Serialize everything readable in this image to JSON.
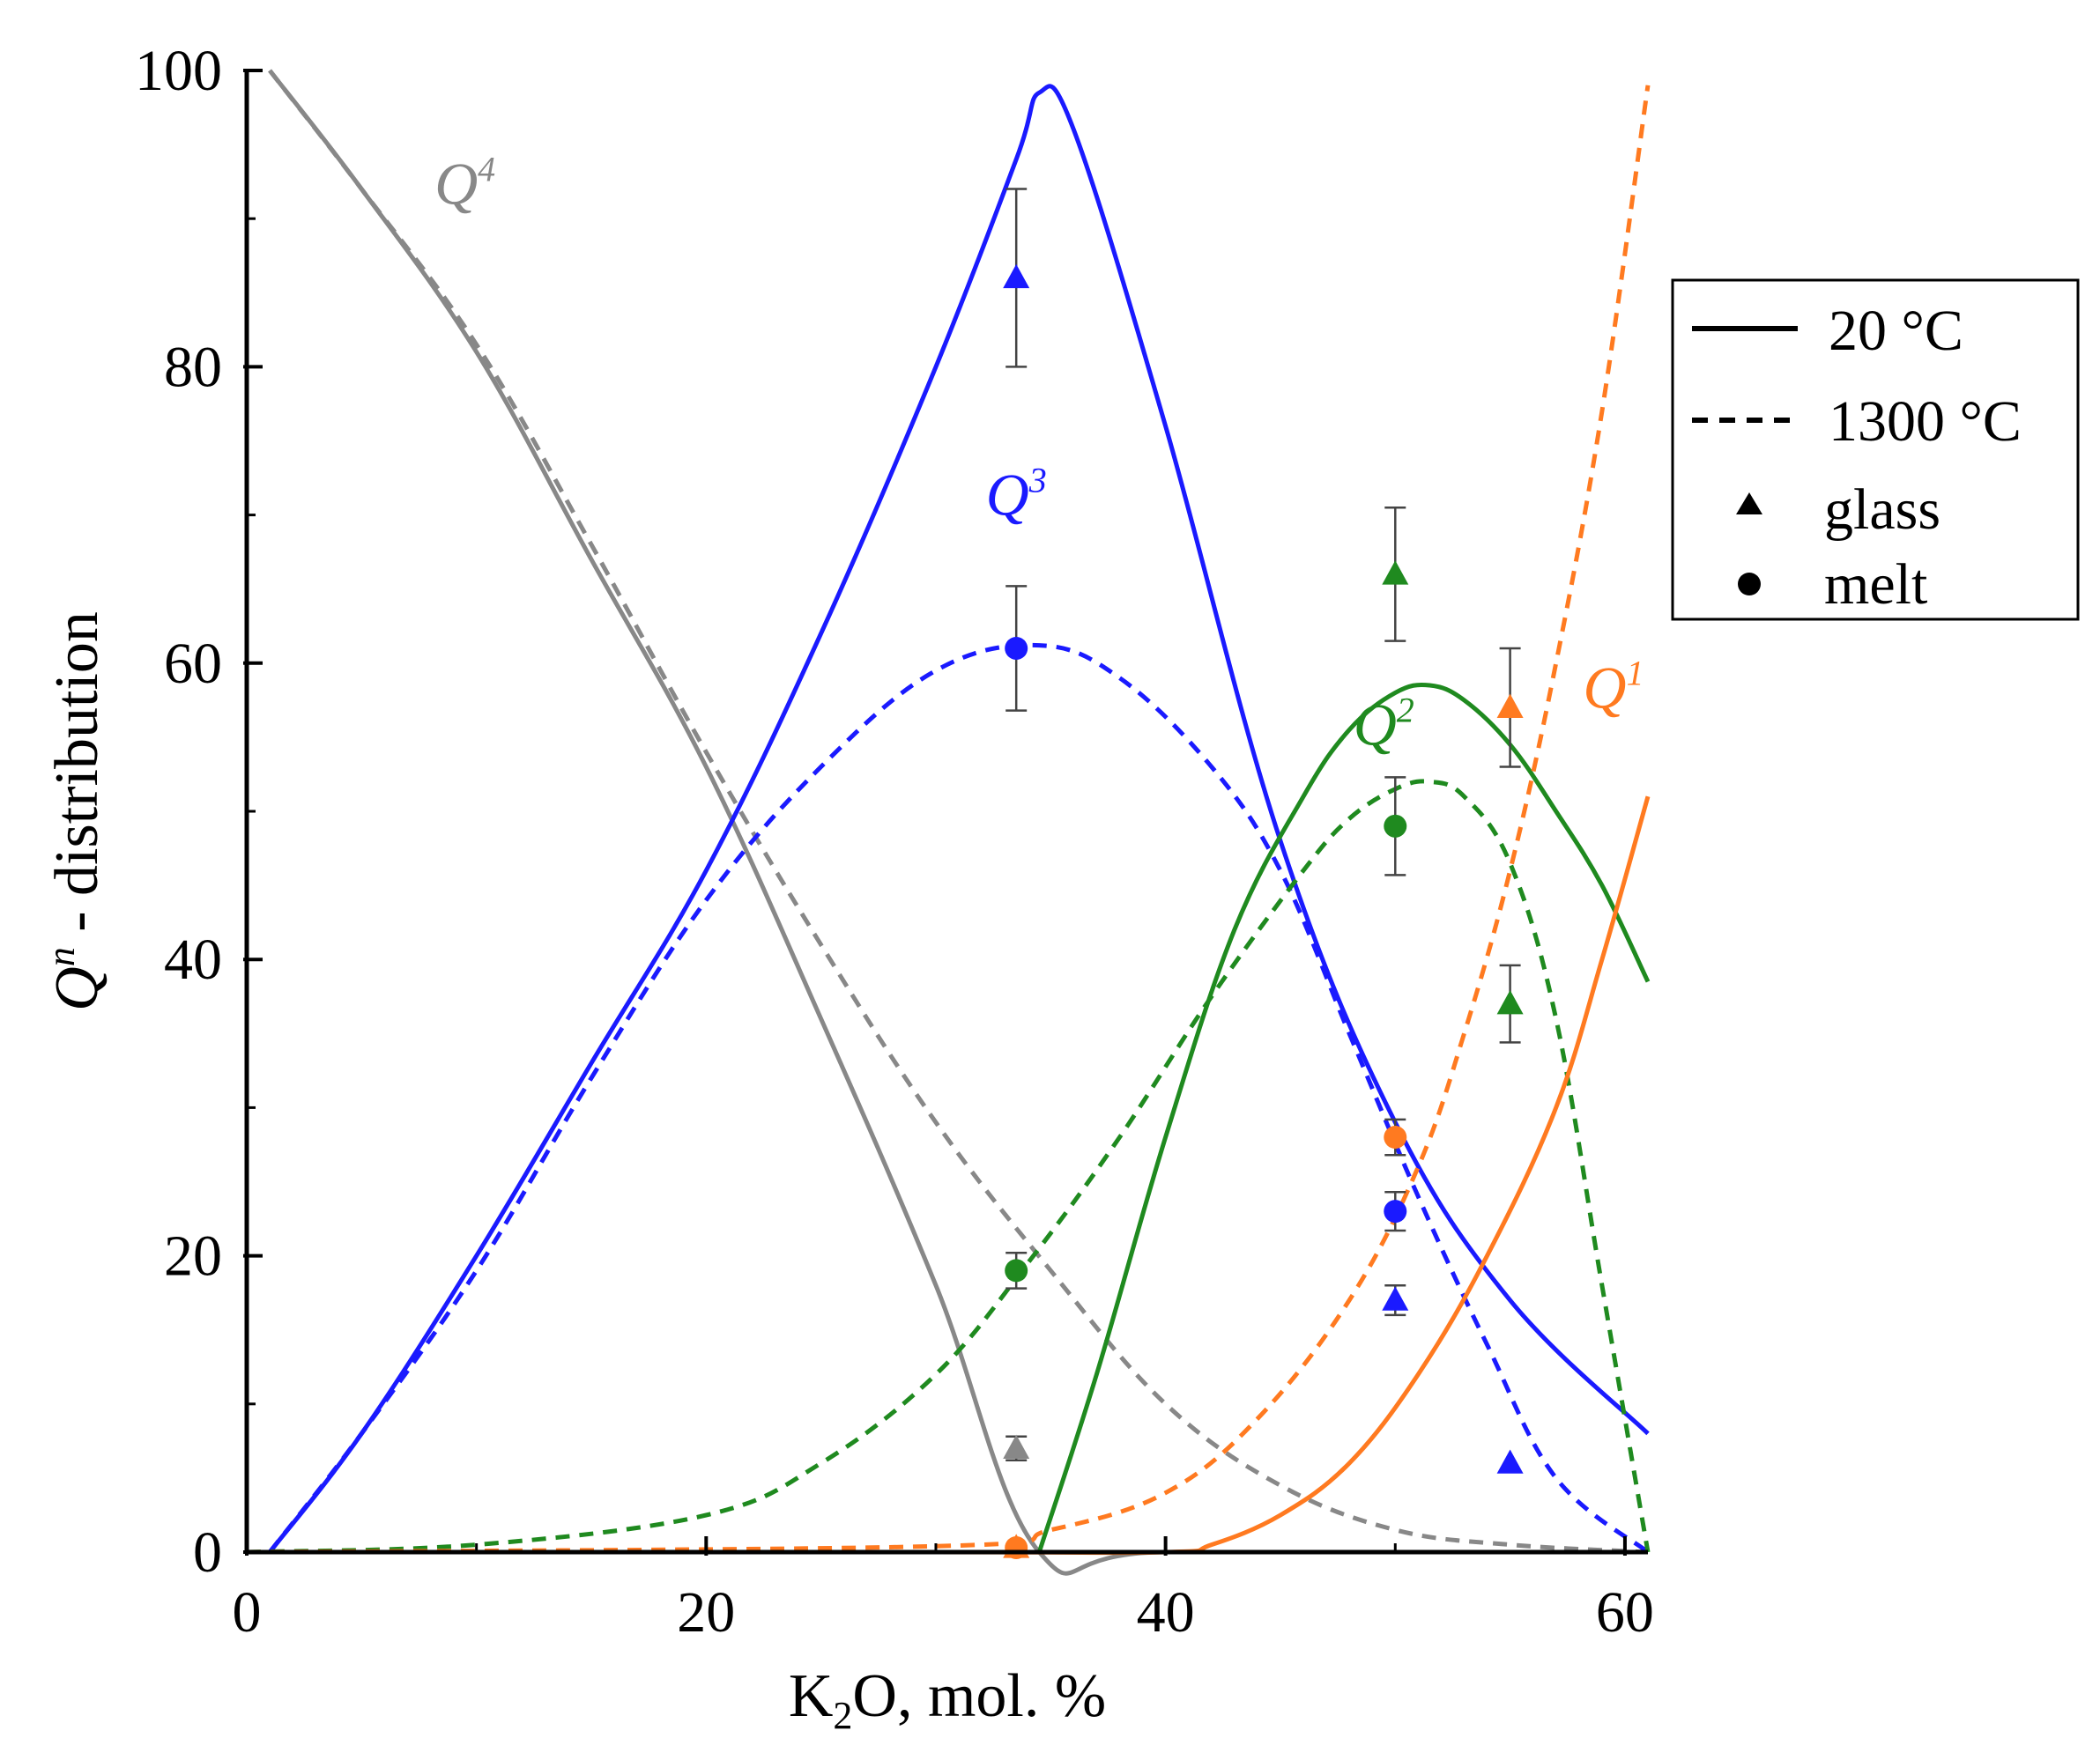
{
  "chart_data": {
    "type": "line",
    "title": "",
    "xlabel": {
      "pre": "K",
      "sub": "2",
      "post": "O, mol. %"
    },
    "ylabel": {
      "base": "Q",
      "sup": "n",
      "post": " - distribution"
    },
    "xlim": [
      0,
      61
    ],
    "ylim": [
      0,
      100
    ],
    "xticks": [
      0,
      20,
      40,
      60
    ],
    "yticks": [
      0,
      20,
      40,
      60,
      80,
      100
    ],
    "yminor": [
      10,
      30,
      50,
      70,
      90
    ],
    "xminor": [
      10,
      30,
      50
    ],
    "colors": {
      "Q4": "#888888",
      "Q3": "#1a1aff",
      "Q2": "#1f8a1f",
      "Q1": "#ff7a20",
      "error": "#444444"
    },
    "labels": [
      {
        "id": "Q4",
        "base": "Q",
        "sup": "4",
        "x": 9.5,
        "y": 91
      },
      {
        "id": "Q3",
        "base": "Q",
        "sup": "3",
        "x": 33.5,
        "y": 70
      },
      {
        "id": "Q2",
        "base": "Q",
        "sup": "2",
        "x": 49.5,
        "y": 54.5
      },
      {
        "id": "Q1",
        "base": "Q",
        "sup": "1",
        "x": 59.5,
        "y": 57
      }
    ],
    "series": [
      {
        "name": "Q4 20 °C",
        "species": "Q4",
        "style": "solid",
        "x": [
          1,
          5,
          10,
          15,
          20,
          25,
          30,
          34.5,
          40,
          61
        ],
        "y": [
          100,
          92,
          81,
          67,
          53,
          36,
          18,
          0,
          0,
          0
        ]
      },
      {
        "name": "Q4 1300 °C",
        "species": "Q4",
        "style": "dashed",
        "x": [
          1,
          5,
          10,
          15,
          20,
          25,
          30,
          35,
          40,
          45,
          50,
          55,
          61
        ],
        "y": [
          100,
          92,
          81.5,
          68,
          54,
          41,
          29,
          19,
          10,
          4.5,
          1.5,
          0.5,
          0
        ]
      },
      {
        "name": "Q3 20 °C",
        "species": "Q3",
        "style": "solid",
        "x": [
          1,
          5,
          10,
          15,
          20,
          25,
          30,
          33.5,
          34.5,
          36,
          40,
          45,
          50,
          55,
          61
        ],
        "y": [
          0,
          8,
          20,
          33,
          46,
          62,
          80,
          94,
          98.5,
          96,
          76,
          48,
          29,
          17,
          8
        ]
      },
      {
        "name": "Q3 1300 °C",
        "species": "Q3",
        "style": "dashed",
        "x": [
          1,
          5,
          10,
          15,
          20,
          25,
          30,
          34.5,
          38,
          42,
          45,
          48,
          51,
          54,
          57,
          61
        ],
        "y": [
          0,
          8,
          19,
          32,
          44,
          53,
          59.5,
          61.2,
          59,
          53,
          46,
          35,
          24,
          14,
          5,
          0
        ]
      },
      {
        "name": "Q2 20 °C",
        "species": "Q2",
        "style": "solid",
        "x": [
          34.5,
          37,
          40,
          43,
          46,
          48,
          50,
          51.5,
          53,
          55,
          57,
          59,
          61
        ],
        "y": [
          0,
          12,
          28,
          42,
          51,
          55.5,
          58,
          58.5,
          57.5,
          54.5,
          50,
          45,
          38.5
        ]
      },
      {
        "name": "Q2 1300 °C",
        "species": "Q2",
        "style": "dashed",
        "x": [
          0,
          10,
          20,
          25,
          30,
          34,
          38,
          42,
          46,
          48,
          50,
          51.5,
          53,
          55,
          57,
          59,
          61
        ],
        "y": [
          0,
          0.5,
          2.5,
          6,
          12,
          19.5,
          28,
          37.5,
          46,
          49.5,
          51.5,
          52,
          51,
          46.5,
          36,
          18,
          0
        ]
      },
      {
        "name": "Q1 20 °C",
        "species": "Q1",
        "style": "solid",
        "x": [
          0,
          30,
          40,
          42,
          45,
          48,
          51,
          54,
          57,
          59,
          61
        ],
        "y": [
          0,
          0,
          0,
          0.5,
          2.5,
          6,
          12,
          20,
          30,
          40,
          51
        ]
      },
      {
        "name": "Q1 1300 °C",
        "species": "Q1",
        "style": "dashed",
        "x": [
          0,
          30,
          35,
          40,
          44,
          48,
          51,
          53,
          55,
          57,
          59,
          61
        ],
        "y": [
          0,
          0.4,
          1.5,
          4,
          9,
          17,
          26,
          35,
          46,
          60,
          77,
          99
        ]
      }
    ],
    "points": [
      {
        "species": "Q3",
        "marker": "triangle",
        "x": 33.5,
        "y": 86,
        "err": 6
      },
      {
        "species": "Q3",
        "marker": "circle",
        "x": 33.5,
        "y": 61,
        "err": 4.2
      },
      {
        "species": "Q2",
        "marker": "circle",
        "x": 33.5,
        "y": 19,
        "err": 1.2
      },
      {
        "species": "Q4",
        "marker": "triangle",
        "x": 33.5,
        "y": 7,
        "err": 0.8
      },
      {
        "species": "Q1",
        "marker": "circle",
        "x": 33.5,
        "y": 0.3,
        "err": 0
      },
      {
        "species": "Q1",
        "marker": "triangle",
        "x": 33.5,
        "y": 0.3,
        "err": 0
      },
      {
        "species": "Q2",
        "marker": "triangle",
        "x": 50,
        "y": 66,
        "err": 4.5
      },
      {
        "species": "Q2",
        "marker": "circle",
        "x": 50,
        "y": 49,
        "err": 3.3
      },
      {
        "species": "Q1",
        "marker": "circle",
        "x": 50,
        "y": 28,
        "err": 1.2
      },
      {
        "species": "Q3",
        "marker": "circle",
        "x": 50,
        "y": 23,
        "err": 1.3
      },
      {
        "species": "Q3",
        "marker": "triangle",
        "x": 50,
        "y": 17,
        "err": 1
      },
      {
        "species": "Q1",
        "marker": "triangle",
        "x": 55,
        "y": 57,
        "err": 4
      },
      {
        "species": "Q2",
        "marker": "triangle",
        "x": 55,
        "y": 37,
        "err": 2.6
      },
      {
        "species": "Q3",
        "marker": "triangle",
        "x": 55,
        "y": 6,
        "err": 0
      }
    ],
    "legend": {
      "position": "right",
      "entries": [
        {
          "label": "20 °C",
          "kind": "solid"
        },
        {
          "label": "1300 °C",
          "kind": "dashed"
        },
        {
          "label": "glass",
          "kind": "triangle"
        },
        {
          "label": "melt",
          "kind": "circle"
        }
      ]
    }
  }
}
